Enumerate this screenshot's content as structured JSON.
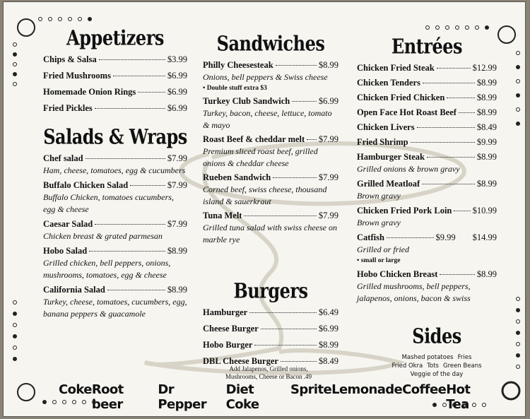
{
  "appetizers": {
    "title": "Appetizers",
    "items": [
      {
        "name": "Chips & Salsa",
        "price": "$3.99"
      },
      {
        "name": "Fried Mushrooms",
        "price": "$6.99"
      },
      {
        "name": "Homemade Onion Rings",
        "price": "$6.99"
      },
      {
        "name": "Fried Pickles",
        "price": "$6.99"
      }
    ]
  },
  "salads": {
    "title": "Salads & Wraps",
    "items": [
      {
        "name": "Chef salad",
        "price": "$7.99",
        "desc": "Ham, cheese, tomatoes, egg & cucumbers"
      },
      {
        "name": "Buffalo Chicken Salad",
        "price": "$7.99",
        "desc": "Buffalo Chicken, tomatoes cucumbers, egg & cheese"
      },
      {
        "name": "Caesar Salad",
        "price": "$7.99",
        "desc": "Chicken breast & grated parmesan"
      },
      {
        "name": "Hobo Salad",
        "price": "$8.99",
        "desc": "Grilled chicken, bell peppers, onions, mushrooms, tomatoes, egg & cheese"
      },
      {
        "name": "California Salad",
        "price": "$8.99",
        "desc": "Turkey, cheese, tomatoes, cucumbers, egg, banana peppers & guacamole"
      }
    ]
  },
  "sandwiches": {
    "title": "Sandwiches",
    "items": [
      {
        "name": "Philly Cheesesteak",
        "price": "$8.99",
        "desc": "Onions, bell peppers & Swiss cheese",
        "note": "• Double stuff extra $3"
      },
      {
        "name": "Turkey Club Sandwich",
        "price": "$6.99",
        "desc": "Turkey, bacon, cheese, lettuce, tomato & mayo"
      },
      {
        "name": "Roast Beef & cheddar melt",
        "price": "$7.99",
        "desc": "Premium sliced roast beef, grilled onions & cheddar cheese"
      },
      {
        "name": "Rueben Sandwich",
        "price": "$7.99",
        "desc": "Corned beef, swiss cheese, thousand island & sauerkraut"
      },
      {
        "name": "Tuna Melt",
        "price": "$7.99",
        "desc": "Grilled tuna salad with swiss cheese on marble rye"
      }
    ]
  },
  "burgers": {
    "title": "Burgers",
    "items": [
      {
        "name": "Hamburger",
        "price": "$6.49"
      },
      {
        "name": "Cheese Burger",
        "price": "$6.99"
      },
      {
        "name": "Hobo Burger",
        "price": "$8.99"
      },
      {
        "name": "DBL Cheese Burger",
        "price": "$8.49"
      }
    ],
    "note": "Add Jalapenos, Grilled onions, Mushrooms, Cheese or Bacon .49"
  },
  "entrees": {
    "title": "Entrées",
    "items": [
      {
        "name": "Chicken Fried Steak",
        "price": "$12.99"
      },
      {
        "name": "Chicken Tenders",
        "price": "$8.99"
      },
      {
        "name": "Chicken Fried Chicken",
        "price": "$8.99"
      },
      {
        "name": "Open Face Hot Roast Beef",
        "price": "$8.99"
      },
      {
        "name": "Chicken Livers",
        "price": "$8.49"
      },
      {
        "name": "Fried Shrimp",
        "price": "$9.99"
      },
      {
        "name": "Hamburger Steak",
        "price": "$8.99",
        "desc": "Grilled onions & brown gravy"
      },
      {
        "name": "Grilled Meatloaf",
        "price": "$8.99",
        "desc": "Brown gravy"
      },
      {
        "name": "Chicken Fried Pork Loin",
        "price": "$10.99",
        "desc": "Brown gravy"
      },
      {
        "name": "Catfish",
        "price": "$9.99",
        "price2": "$14.99",
        "desc": "Grilled or fried",
        "note": "• small or large"
      },
      {
        "name": "Hobo Chicken Breast",
        "price": "$8.99",
        "desc": "Grilled mushrooms, bell peppers, jalapenos, onions, bacon & swiss"
      }
    ]
  },
  "sides": {
    "title": "Sides",
    "rows": [
      [
        "Mashed potatoes",
        "Fries"
      ],
      [
        "Fried Okra",
        "Tots",
        "Green Beans"
      ],
      [
        "Veggie of the day"
      ]
    ]
  },
  "drinks": [
    "Coke",
    "Root beer",
    "Dr Pepper",
    "Diet Coke",
    "Sprite",
    "Lemonade",
    "Coffee",
    "Hot Tea"
  ]
}
